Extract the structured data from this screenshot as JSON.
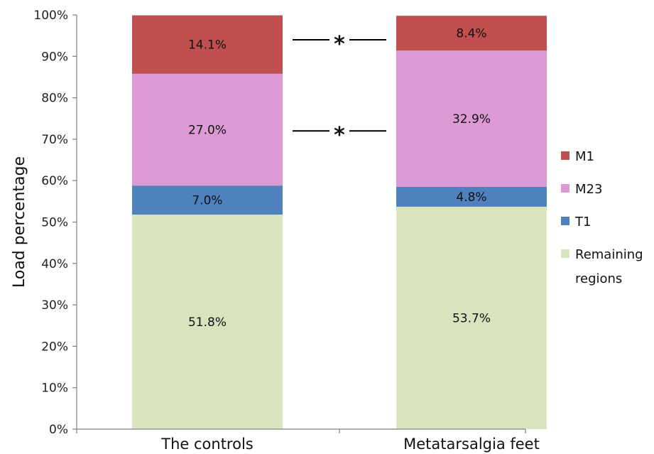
{
  "chart_data": {
    "type": "bar",
    "stacked": true,
    "categories": [
      "The controls",
      "Metatarsalgia feet"
    ],
    "series": [
      {
        "name": "Remaining regions",
        "color": "#d7e4bd",
        "values": [
          51.8,
          53.7
        ],
        "labels": [
          "51.8%",
          "53.7%"
        ]
      },
      {
        "name": "T1",
        "color": "#4f81bd",
        "values": [
          7.0,
          4.8
        ],
        "labels": [
          "7.0%",
          "4.8%"
        ]
      },
      {
        "name": "M23",
        "color": "#dd99d4",
        "values": [
          27.0,
          32.9
        ],
        "labels": [
          "27.0%",
          "32.9%"
        ]
      },
      {
        "name": "M1",
        "color": "#c0504d",
        "values": [
          14.1,
          8.4
        ],
        "labels": [
          "14.1%",
          "8.4%"
        ]
      }
    ],
    "legend": [
      {
        "lines": [
          "M1"
        ],
        "color": "#c0504d"
      },
      {
        "lines": [
          "M23"
        ],
        "color": "#dd99d4"
      },
      {
        "lines": [
          "T1"
        ],
        "color": "#4f81bd"
      },
      {
        "lines": [
          "Remaining",
          "regions"
        ],
        "color": "#d7e4bd"
      }
    ],
    "legend_position": "right",
    "ylabel": "Load percentage",
    "xlabel": "",
    "ylim": [
      0,
      100
    ],
    "yticks": [
      "0%",
      "10%",
      "20%",
      "30%",
      "40%",
      "50%",
      "60%",
      "70%",
      "80%",
      "90%",
      "100%"
    ],
    "grid": false,
    "annotations": [
      {
        "text": "*",
        "between_series": "M1",
        "at_value": 94
      },
      {
        "text": "*",
        "between_series": "M23",
        "at_value": 72
      }
    ]
  }
}
